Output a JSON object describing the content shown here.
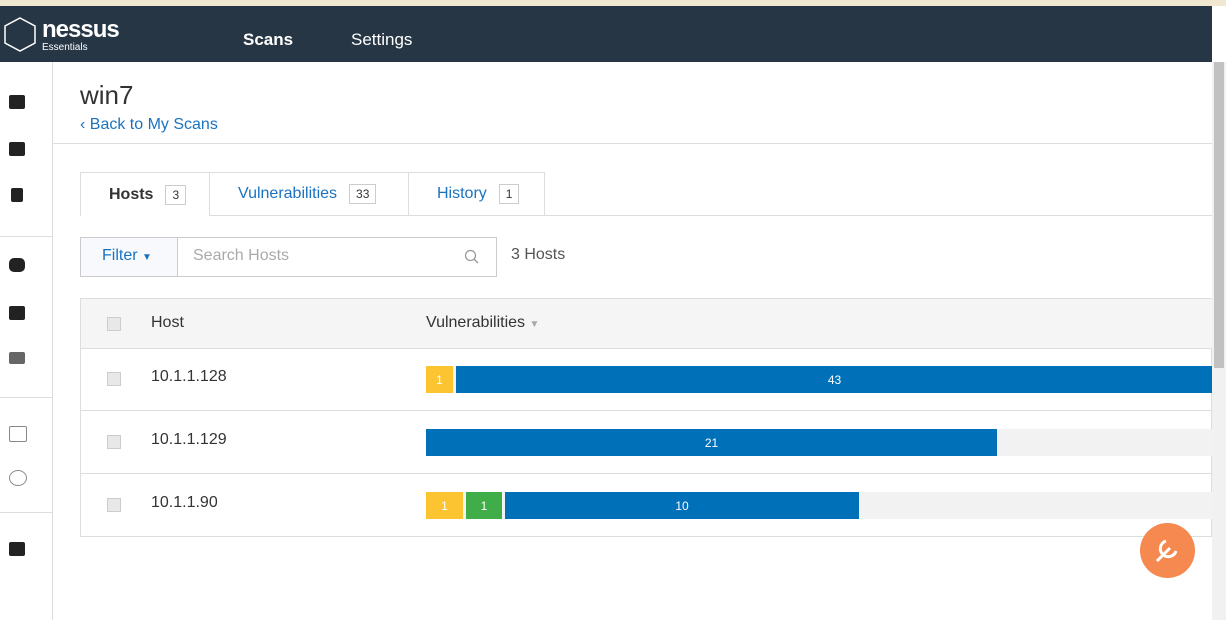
{
  "nav": {
    "brand": "nessus",
    "edition": "Essentials",
    "items": [
      "Scans",
      "Settings"
    ]
  },
  "scan": {
    "title": "win7",
    "back_link": "Back to My Scans"
  },
  "tabs": [
    {
      "label": "Hosts",
      "count": 3
    },
    {
      "label": "Vulnerabilities",
      "count": 33
    },
    {
      "label": "History",
      "count": 1
    }
  ],
  "toolbar": {
    "filter": "Filter",
    "search_placeholder": "Search Hosts",
    "result_count": "3 Hosts"
  },
  "table": {
    "columns": [
      "Host",
      "Vulnerabilities"
    ],
    "rows": [
      {
        "host": "10.1.1.128",
        "segments": [
          {
            "value": 1,
            "color": "#fdc431"
          },
          {
            "value": 43,
            "color": "#0071b9"
          }
        ]
      },
      {
        "host": "10.1.1.129",
        "segments": [
          {
            "value": 21,
            "color": "#0071b9"
          }
        ]
      },
      {
        "host": "10.1.1.90",
        "segments": [
          {
            "value": 1,
            "color": "#fdc431"
          },
          {
            "value": 1,
            "color": "#3fae49"
          },
          {
            "value": 10,
            "color": "#0071b9"
          }
        ]
      }
    ]
  }
}
